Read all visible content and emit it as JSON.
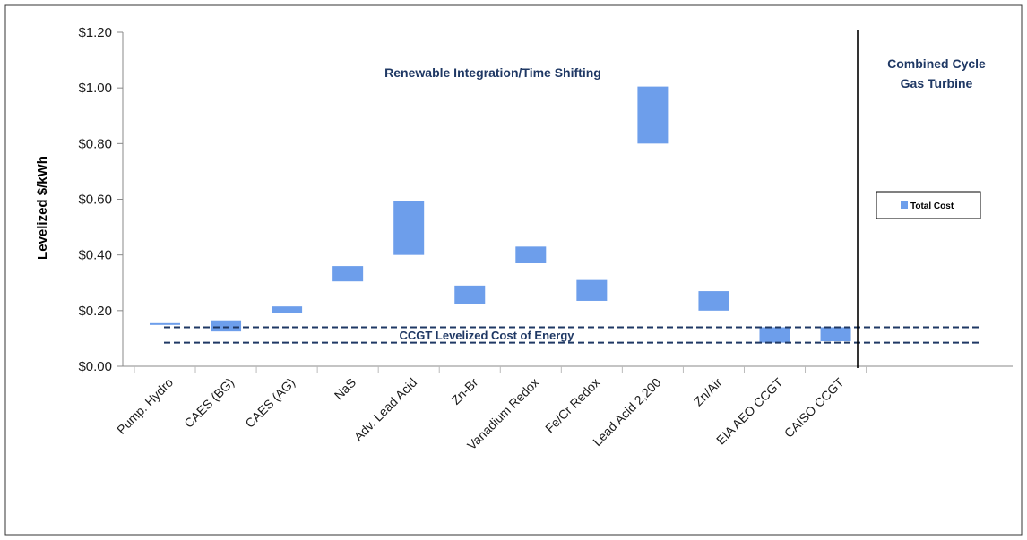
{
  "chart_data": {
    "type": "bar",
    "subtype": "floating-range",
    "ylabel": "Levelized $/kWh",
    "ylim": [
      0,
      1.2
    ],
    "yticks": [
      "$0.00",
      "$0.20",
      "$0.40",
      "$0.60",
      "$0.80",
      "$1.00",
      "$1.20"
    ],
    "ytick_values": [
      0,
      0.2,
      0.4,
      0.6,
      0.8,
      1.0,
      1.2
    ],
    "grid": false,
    "categories": [
      "Pump. Hydro",
      "CAES (BG)",
      "CAES (AG)",
      "NaS",
      "Adv. Lead Acid",
      "Zn-Br",
      "Vanadium Redox",
      "Fe/Cr Redox",
      "Lead Acid 2,200",
      "Zn/Air",
      "EIA AEO CCGT",
      "CAISO CCGT"
    ],
    "series": [
      {
        "name": "Total Cost",
        "color": "#6d9eeb",
        "low": [
          0.15,
          0.125,
          0.19,
          0.305,
          0.4,
          0.225,
          0.37,
          0.235,
          0.8,
          0.2,
          0.085,
          0.09
        ],
        "high": [
          0.155,
          0.165,
          0.215,
          0.36,
          0.595,
          0.29,
          0.43,
          0.31,
          1.005,
          0.27,
          0.14,
          0.14
        ]
      }
    ],
    "regions": [
      {
        "label_lines": [
          "Renewable Integration/Time Shifting"
        ]
      },
      {
        "label_lines": [
          "Combined Cycle",
          "Gas Turbine"
        ]
      }
    ],
    "reference_band": {
      "label": "CCGT Levelized Cost of Energy",
      "low": 0.085,
      "high": 0.14,
      "color": "#1f3864"
    },
    "legend": {
      "position": "right",
      "label": "Total Cost"
    }
  }
}
